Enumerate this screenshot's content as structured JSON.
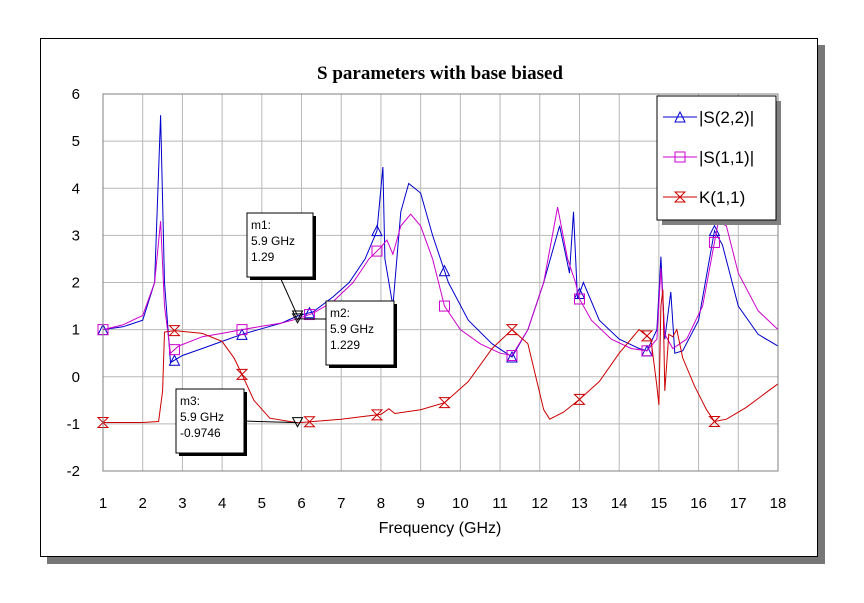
{
  "chart_data": {
    "type": "line",
    "title": "S parameters with base biased",
    "xlabel": "Frequency (GHz)",
    "ylabel": "",
    "xlim": [
      1,
      18
    ],
    "ylim": [
      -2,
      6
    ],
    "xticks": [
      1,
      2,
      3,
      4,
      5,
      6,
      7,
      8,
      9,
      10,
      11,
      12,
      13,
      14,
      15,
      16,
      17,
      18
    ],
    "yticks": [
      -2,
      -1,
      0,
      1,
      2,
      3,
      4,
      5,
      6
    ],
    "grid": true,
    "legend_position": "top-right",
    "series": [
      {
        "name": "|S(2,2)|",
        "color": "#0000cc",
        "symbol": "triangle-up",
        "points": [
          [
            1,
            1.0
          ],
          [
            1.5,
            1.06
          ],
          [
            2.0,
            1.2
          ],
          [
            2.3,
            2.0
          ],
          [
            2.45,
            5.55
          ],
          [
            2.55,
            2.0
          ],
          [
            2.7,
            0.3
          ],
          [
            3.0,
            0.45
          ],
          [
            3.5,
            0.6
          ],
          [
            4.0,
            0.75
          ],
          [
            4.5,
            0.9
          ],
          [
            5.0,
            1.02
          ],
          [
            5.5,
            1.14
          ],
          [
            5.9,
            1.29
          ],
          [
            6.3,
            1.38
          ],
          [
            6.8,
            1.7
          ],
          [
            7.2,
            2.0
          ],
          [
            7.6,
            2.5
          ],
          [
            7.9,
            3.1
          ],
          [
            8.05,
            4.45
          ],
          [
            8.1,
            2.5
          ],
          [
            8.3,
            1.5
          ],
          [
            8.5,
            3.5
          ],
          [
            8.7,
            4.1
          ],
          [
            9.0,
            3.9
          ],
          [
            9.3,
            3.0
          ],
          [
            9.7,
            2.0
          ],
          [
            10.2,
            1.2
          ],
          [
            10.8,
            0.7
          ],
          [
            11.3,
            0.42
          ],
          [
            11.7,
            1.0
          ],
          [
            12.1,
            2.0
          ],
          [
            12.5,
            3.2
          ],
          [
            12.75,
            2.2
          ],
          [
            12.85,
            3.5
          ],
          [
            12.95,
            1.65
          ],
          [
            13.1,
            2.0
          ],
          [
            13.5,
            1.2
          ],
          [
            14.0,
            0.8
          ],
          [
            14.5,
            0.6
          ],
          [
            14.7,
            0.55
          ],
          [
            14.95,
            1.0
          ],
          [
            15.05,
            2.55
          ],
          [
            15.15,
            0.8
          ],
          [
            15.3,
            1.8
          ],
          [
            15.4,
            0.5
          ],
          [
            15.6,
            0.55
          ],
          [
            16.0,
            1.2
          ],
          [
            16.4,
            3.1
          ],
          [
            16.6,
            2.8
          ],
          [
            17.0,
            1.5
          ],
          [
            17.5,
            0.9
          ],
          [
            18.0,
            0.65
          ]
        ]
      },
      {
        "name": "|S(1,1)|",
        "color": "#cc00cc",
        "symbol": "square",
        "points": [
          [
            1,
            1.0
          ],
          [
            1.5,
            1.1
          ],
          [
            2.0,
            1.3
          ],
          [
            2.3,
            2.0
          ],
          [
            2.45,
            3.3
          ],
          [
            2.55,
            1.5
          ],
          [
            2.7,
            0.5
          ],
          [
            2.9,
            0.65
          ],
          [
            3.5,
            0.85
          ],
          [
            4.0,
            0.92
          ],
          [
            4.5,
            1.0
          ],
          [
            5.0,
            1.07
          ],
          [
            5.5,
            1.14
          ],
          [
            5.9,
            1.229
          ],
          [
            6.3,
            1.35
          ],
          [
            6.8,
            1.6
          ],
          [
            7.3,
            2.0
          ],
          [
            7.7,
            2.5
          ],
          [
            8.0,
            2.75
          ],
          [
            8.15,
            2.9
          ],
          [
            8.3,
            2.6
          ],
          [
            8.5,
            3.2
          ],
          [
            8.75,
            3.45
          ],
          [
            9.0,
            3.2
          ],
          [
            9.3,
            2.5
          ],
          [
            9.6,
            1.5
          ],
          [
            10.0,
            1.0
          ],
          [
            10.5,
            0.7
          ],
          [
            11.0,
            0.5
          ],
          [
            11.3,
            0.45
          ],
          [
            11.7,
            1.0
          ],
          [
            12.1,
            2.0
          ],
          [
            12.45,
            3.6
          ],
          [
            12.7,
            2.5
          ],
          [
            12.9,
            2.0
          ],
          [
            13.0,
            1.65
          ],
          [
            13.3,
            1.2
          ],
          [
            13.8,
            0.8
          ],
          [
            14.3,
            0.6
          ],
          [
            14.7,
            0.55
          ],
          [
            14.95,
            0.8
          ],
          [
            15.05,
            2.3
          ],
          [
            15.15,
            0.9
          ],
          [
            15.35,
            0.6
          ],
          [
            15.7,
            0.8
          ],
          [
            16.1,
            1.5
          ],
          [
            16.5,
            3.3
          ],
          [
            16.7,
            3.2
          ],
          [
            17.0,
            2.2
          ],
          [
            17.5,
            1.4
          ],
          [
            18.0,
            1.0
          ]
        ]
      },
      {
        "name": "K(1,1)",
        "color": "#cc0000",
        "symbol": "hourglass",
        "points": [
          [
            1,
            -0.97
          ],
          [
            2.0,
            -0.97
          ],
          [
            2.4,
            -0.95
          ],
          [
            2.5,
            -0.3
          ],
          [
            2.55,
            0.95
          ],
          [
            2.8,
            0.98
          ],
          [
            3.5,
            0.92
          ],
          [
            4.0,
            0.75
          ],
          [
            4.3,
            0.4
          ],
          [
            4.5,
            0.05
          ],
          [
            4.8,
            -0.5
          ],
          [
            5.2,
            -0.88
          ],
          [
            5.9,
            -0.9746
          ],
          [
            6.3,
            -0.95
          ],
          [
            7.0,
            -0.9
          ],
          [
            7.5,
            -0.85
          ],
          [
            8.0,
            -0.8
          ],
          [
            8.2,
            -0.68
          ],
          [
            8.35,
            -0.78
          ],
          [
            9.0,
            -0.7
          ],
          [
            9.6,
            -0.55
          ],
          [
            10.2,
            -0.1
          ],
          [
            10.8,
            0.6
          ],
          [
            11.3,
            1.0
          ],
          [
            11.7,
            0.7
          ],
          [
            12.1,
            -0.7
          ],
          [
            12.25,
            -0.9
          ],
          [
            12.6,
            -0.75
          ],
          [
            13.0,
            -0.48
          ],
          [
            13.5,
            -0.1
          ],
          [
            14.0,
            0.5
          ],
          [
            14.5,
            1.0
          ],
          [
            14.8,
            0.8
          ],
          [
            14.95,
            -0.2
          ],
          [
            15.0,
            -0.6
          ],
          [
            15.05,
            1.5
          ],
          [
            15.1,
            1.85
          ],
          [
            15.15,
            -0.3
          ],
          [
            15.25,
            0.9
          ],
          [
            15.35,
            0.85
          ],
          [
            15.45,
            1.0
          ],
          [
            15.6,
            0.4
          ],
          [
            15.9,
            -0.2
          ],
          [
            16.2,
            -0.7
          ],
          [
            16.4,
            -0.95
          ],
          [
            16.7,
            -0.9
          ],
          [
            17.2,
            -0.65
          ],
          [
            17.6,
            -0.4
          ],
          [
            18.0,
            -0.15
          ]
        ],
        "symbol_x": [
          1,
          2.8,
          4.5,
          6.2,
          7.9,
          9.6,
          11.3,
          13.0,
          14.7,
          16.4
        ]
      }
    ],
    "symbol_x": [
      1,
      2.8,
      4.5,
      6.2,
      7.9,
      9.6,
      11.3,
      13.0,
      14.7,
      16.4
    ],
    "markers": [
      {
        "id": "m1",
        "lines": [
          "m1:",
          "5.9 GHz",
          "1.29"
        ],
        "x": 5.9,
        "y": 1.29
      },
      {
        "id": "m2",
        "lines": [
          "m2:",
          "5.9 GHz",
          "1.229"
        ],
        "x": 5.9,
        "y": 1.229
      },
      {
        "id": "m3",
        "lines": [
          "m3:",
          "5.9 GHz",
          "-0.9746"
        ],
        "x": 5.9,
        "y": -0.9746
      }
    ]
  }
}
